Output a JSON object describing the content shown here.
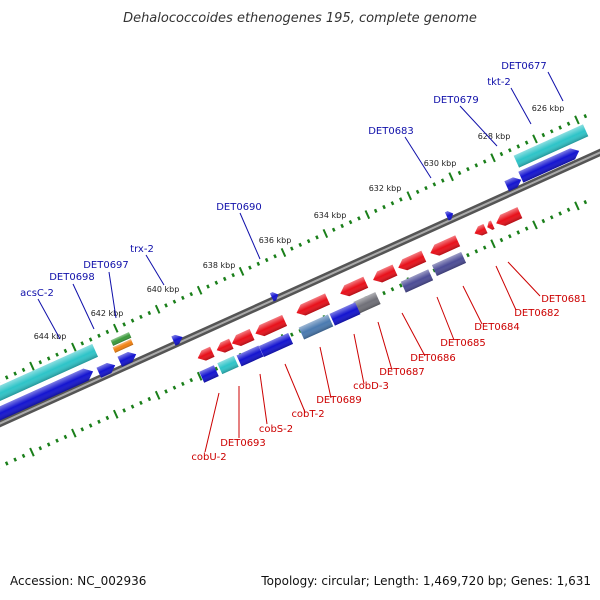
{
  "title": "Dehalococcoides ethenogenes 195, complete genome",
  "footer": {
    "accession": "Accession: NC_002936",
    "summary": "Topology: circular; Length: 1,469,720 bp; Genes: 1,631"
  },
  "colors": {
    "backbone": "#777777",
    "tick": "#1a7f1a",
    "label_blue": "#1010aa",
    "label_red": "#cc0000",
    "gene_red": "#e8101a",
    "gene_blue": "#1414d0",
    "gene_cyan": "#2ec4c8",
    "gene_navy": "#4c4c96",
    "gene_steel": "#4a7ab0",
    "gene_gray": "#707078",
    "gene_green": "#3a9a3a",
    "gene_orange": "#f08010"
  },
  "scale_labels": [
    "626 kbp",
    "628 kbp",
    "630 kbp",
    "632 kbp",
    "634 kbp",
    "636 kbp",
    "638 kbp",
    "640 kbp",
    "642 kbp",
    "644 kbp"
  ],
  "top_gene_labels": [
    "DET0677",
    "tkt-2",
    "DET0679",
    "DET0683",
    "DET0690",
    "trx-2",
    "DET0697",
    "DET0698",
    "acsC-2"
  ],
  "bottom_gene_labels": [
    "DET0681",
    "DET0682",
    "DET0684",
    "DET0685",
    "DET0686",
    "DET0687",
    "cobD-3",
    "DET0689",
    "cobT-2",
    "cobS-2",
    "DET0693",
    "cobU-2"
  ]
}
